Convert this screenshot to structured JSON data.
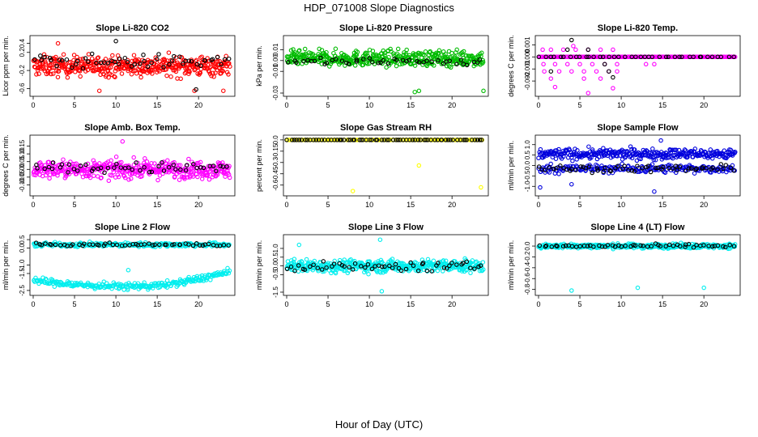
{
  "figure": {
    "title": "HDP_071008  Slope Diagnostics",
    "xlabel": "Hour of Day (UTC)"
  },
  "chart_data": [
    {
      "type": "scatter",
      "title": "Slope Li-820 CO2",
      "ylabel": "Licor ppm per min.",
      "xlim": [
        0,
        24
      ],
      "ylim": [
        -0.7,
        0.5
      ],
      "xticks": [
        0,
        5,
        10,
        15,
        20
      ],
      "yticks": [
        -0.6,
        -0.2,
        0.2,
        0.4
      ],
      "ytick_labels": [
        "-0.6",
        "-0.2",
        "0.2",
        "0.4"
      ],
      "series": [
        {
          "color": "#ff0000",
          "x_range": [
            0,
            23.8
          ],
          "n": 420,
          "center": -0.1,
          "spread": 0.22,
          "outliers": [
            [
              3.0,
              0.4
            ],
            [
              8.0,
              -0.65
            ],
            [
              19.5,
              -0.65
            ],
            [
              23.0,
              -0.65
            ]
          ]
        },
        {
          "color": "#000000",
          "x_range": [
            0,
            23.8
          ],
          "n": 55,
          "center": 0.0,
          "spread": 0.15,
          "outliers": [
            [
              10.0,
              0.45
            ],
            [
              19.7,
              -0.62
            ]
          ]
        }
      ]
    },
    {
      "type": "scatter",
      "title": "Slope Li-820 Pressure",
      "ylabel": "kPa per min.",
      "xlim": [
        0,
        24
      ],
      "ylim": [
        -0.03,
        0.02
      ],
      "xticks": [
        0,
        5,
        10,
        15,
        20
      ],
      "yticks": [
        -0.03,
        -0.01,
        0.0,
        0.01
      ],
      "ytick_labels": [
        "-0.03",
        "-0.01",
        "0.00",
        "0.01"
      ],
      "series": [
        {
          "color": "#00bb00",
          "x_range": [
            0,
            23.8
          ],
          "n": 420,
          "center": 0.002,
          "spread": 0.007,
          "outliers": [
            [
              15.5,
              -0.029
            ],
            [
              23.8,
              -0.028
            ],
            [
              16.0,
              -0.028
            ]
          ]
        },
        {
          "color": "#000000",
          "x_range": [
            0,
            23.8
          ],
          "n": 45,
          "center": -0.001,
          "spread": 0.004,
          "outliers": []
        }
      ]
    },
    {
      "type": "scatter",
      "title": "Slope Li-820 Temp.",
      "ylabel": "degrees C per min.",
      "xlim": [
        0,
        24
      ],
      "ylim": [
        -0.003,
        0.0015
      ],
      "xticks": [
        0,
        5,
        10,
        15,
        20
      ],
      "yticks": [
        -0.002,
        -0.001,
        0.0,
        0.001
      ],
      "ytick_labels": [
        "-0.002",
        "-0.001",
        "0.000",
        "0.001"
      ],
      "series": [
        {
          "color": "#ff00ff",
          "levels": [
            0.0
          ],
          "x_range": [
            0,
            23.8
          ],
          "n": 210,
          "extra": [
            [
              0.5,
              0.0006
            ],
            [
              1.5,
              0.0006
            ],
            [
              3.0,
              0.0006
            ],
            [
              4.5,
              0.0006
            ],
            [
              6.0,
              0.0006
            ],
            [
              7.5,
              0.0006
            ],
            [
              9.0,
              0.0006
            ],
            [
              0.6,
              -0.0006
            ],
            [
              2.0,
              -0.0006
            ],
            [
              3.5,
              -0.0006
            ],
            [
              5.0,
              -0.0006
            ],
            [
              6.5,
              -0.0006
            ],
            [
              8.0,
              -0.0006
            ],
            [
              9.5,
              -0.0006
            ],
            [
              13.0,
              -0.0006
            ],
            [
              14.0,
              -0.0006
            ],
            [
              0.7,
              -0.0012
            ],
            [
              2.5,
              -0.0012
            ],
            [
              4.0,
              -0.0012
            ],
            [
              5.5,
              -0.0012
            ],
            [
              7.0,
              -0.0012
            ],
            [
              8.5,
              -0.0012
            ],
            [
              9.5,
              -0.0012
            ],
            [
              1.5,
              -0.0018
            ],
            [
              5.5,
              -0.0018
            ],
            [
              7.5,
              -0.0018
            ],
            [
              2.0,
              -0.0025
            ],
            [
              6.0,
              -0.003
            ],
            [
              9.0,
              -0.0026
            ],
            [
              4.2,
              0.0009
            ]
          ]
        },
        {
          "color": "#000000",
          "levels": [
            0.0
          ],
          "x_range": [
            0,
            23.8
          ],
          "n": 40,
          "extra": [
            [
              4.0,
              0.0014
            ],
            [
              3.5,
              0.0006
            ],
            [
              6.0,
              0.0006
            ],
            [
              8.0,
              -0.0006
            ],
            [
              1.5,
              -0.0012
            ],
            [
              8.5,
              -0.0012
            ],
            [
              9.0,
              -0.0017
            ]
          ]
        }
      ]
    },
    {
      "type": "scatter",
      "title": "Slope Amb. Box Temp.",
      "ylabel": "degrees C per min.",
      "xlim": [
        0,
        24
      ],
      "ylim": [
        -0.15,
        0.2
      ],
      "xticks": [
        0,
        5,
        10,
        15,
        20
      ],
      "yticks": [
        -0.1,
        -0.05,
        0.0,
        0.05,
        0.1,
        0.15
      ],
      "ytick_labels": [
        "-0.10",
        "-0.05",
        "0.00",
        "0.05",
        "0.10",
        "0.15"
      ],
      "series": [
        {
          "color": "#ff00ff",
          "x_range": [
            0,
            23.8
          ],
          "n": 420,
          "center": 0.0,
          "spread": 0.055,
          "outliers": [
            [
              10.8,
              0.18
            ]
          ]
        },
        {
          "color": "#000000",
          "x_range": [
            0,
            23.8
          ],
          "n": 50,
          "center": 0.01,
          "spread": 0.035,
          "outliers": []
        }
      ]
    },
    {
      "type": "scatter",
      "title": "Slope Gas Stream RH",
      "ylabel": "percent per min.",
      "xlim": [
        0,
        24
      ],
      "ylim": [
        -0.7,
        0.02
      ],
      "xticks": [
        0,
        5,
        10,
        15,
        20
      ],
      "yticks": [
        -0.6,
        -0.45,
        -0.3,
        -0.15,
        0.0
      ],
      "ytick_labels": [
        "-0.6",
        "-0.45",
        "-0.3",
        "-0.15",
        "0.0"
      ],
      "series": [
        {
          "color": "#ffff00",
          "levels": [
            0.0
          ],
          "x_range": [
            0,
            23.8
          ],
          "n": 120,
          "extra": [
            [
              8.0,
              -0.68
            ],
            [
              16.0,
              -0.34
            ],
            [
              23.5,
              -0.63
            ]
          ]
        },
        {
          "color": "#000000",
          "levels": [
            0.0
          ],
          "x_range": [
            0,
            23.8
          ],
          "n": 70,
          "extra": []
        }
      ]
    },
    {
      "type": "scatter",
      "title": "Slope Sample Flow",
      "ylabel": "ml/min per min.",
      "xlim": [
        0,
        24
      ],
      "ylim": [
        -1.3,
        1.3
      ],
      "xticks": [
        0,
        5,
        10,
        15,
        20
      ],
      "yticks": [
        -1.0,
        -0.5,
        0.0,
        0.5,
        1.0
      ],
      "ytick_labels": [
        "-1.0",
        "-0.5",
        "0.0",
        "0.5",
        "1.0"
      ],
      "series": [
        {
          "color": "#0000dd",
          "x_range": [
            0,
            23.8
          ],
          "n": 320,
          "center": 0.55,
          "spread": 0.25,
          "outliers": [
            [
              0.2,
              -1.05
            ],
            [
              4.0,
              -0.9
            ],
            [
              14.0,
              -1.25
            ],
            [
              14.8,
              1.2
            ]
          ]
        },
        {
          "color": "#0000dd",
          "x_range": [
            0,
            23.8
          ],
          "n": 200,
          "center": -0.15,
          "spread": 0.2,
          "outliers": []
        },
        {
          "color": "#000000",
          "x_range": [
            0,
            23.8
          ],
          "n": 60,
          "center": -0.15,
          "spread": 0.15,
          "outliers": []
        }
      ]
    },
    {
      "type": "scatter",
      "title": "Slope Line 2 Flow",
      "ylabel": "ml/min per min.",
      "xlim": [
        0,
        24
      ],
      "ylim": [
        -2.6,
        0.6
      ],
      "xticks": [
        0,
        5,
        10,
        15,
        20
      ],
      "yticks": [
        -2.5,
        -1.5,
        -1.0,
        0.0,
        0.5
      ],
      "ytick_labels": [
        "-2.5",
        "-1.5",
        "-1.0",
        "0.0",
        "0.5"
      ],
      "series": [
        {
          "color": "#00eeee",
          "x_range": [
            0,
            23.8
          ],
          "n": 260,
          "center": 0.2,
          "spread": 0.12,
          "outliers": []
        },
        {
          "color": "#00eeee",
          "x_range": [
            0,
            23.8
          ],
          "n": 260,
          "center": -1.9,
          "spread": 0.2,
          "curve": "dip",
          "outliers": [
            [
              11.5,
              -1.3
            ],
            [
              13.0,
              -2.2
            ]
          ]
        },
        {
          "color": "#000000",
          "x_range": [
            0,
            23.8
          ],
          "n": 55,
          "center": 0.2,
          "spread": 0.08,
          "outliers": []
        }
      ]
    },
    {
      "type": "scatter",
      "title": "Slope Line 3 Flow",
      "ylabel": "ml/min per min.",
      "xlim": [
        0,
        24
      ],
      "ylim": [
        -1.5,
        1.6
      ],
      "xticks": [
        0,
        5,
        10,
        15,
        20
      ],
      "yticks": [
        -1.5,
        -0.5,
        0.0,
        0.5,
        1.0
      ],
      "ytick_labels": [
        "-1.5",
        "-0.5",
        "0.0",
        "0.5",
        "1.0"
      ],
      "series": [
        {
          "color": "#00eeee",
          "x_range": [
            0,
            23.8
          ],
          "n": 420,
          "center": 0.0,
          "spread": 0.35,
          "outliers": [
            [
              11.3,
              1.5
            ],
            [
              11.5,
              -1.45
            ],
            [
              1.5,
              1.2
            ]
          ]
        },
        {
          "color": "#000000",
          "x_range": [
            0,
            23.8
          ],
          "n": 55,
          "center": -0.05,
          "spread": 0.25,
          "outliers": []
        }
      ]
    },
    {
      "type": "scatter",
      "title": "Slope Line 4 (LT) Flow",
      "ylabel": "ml/min per min.",
      "xlim": [
        0,
        24
      ],
      "ylim": [
        -0.85,
        0.15
      ],
      "xticks": [
        0,
        5,
        10,
        15,
        20
      ],
      "yticks": [
        -0.8,
        -0.6,
        -0.4,
        -0.2,
        0.0
      ],
      "ytick_labels": [
        "-0.8",
        "-0.6",
        "-0.4",
        "-0.2",
        "0.0"
      ],
      "series": [
        {
          "color": "#00eeee",
          "x_range": [
            0,
            23.8
          ],
          "n": 420,
          "center": 0.0,
          "spread": 0.04,
          "outliers": [
            [
              4.0,
              -0.82
            ],
            [
              12.0,
              -0.77
            ],
            [
              20.0,
              -0.77
            ]
          ]
        },
        {
          "color": "#000000",
          "x_range": [
            0,
            23.8
          ],
          "n": 55,
          "center": 0.0,
          "spread": 0.03,
          "outliers": []
        }
      ]
    }
  ]
}
